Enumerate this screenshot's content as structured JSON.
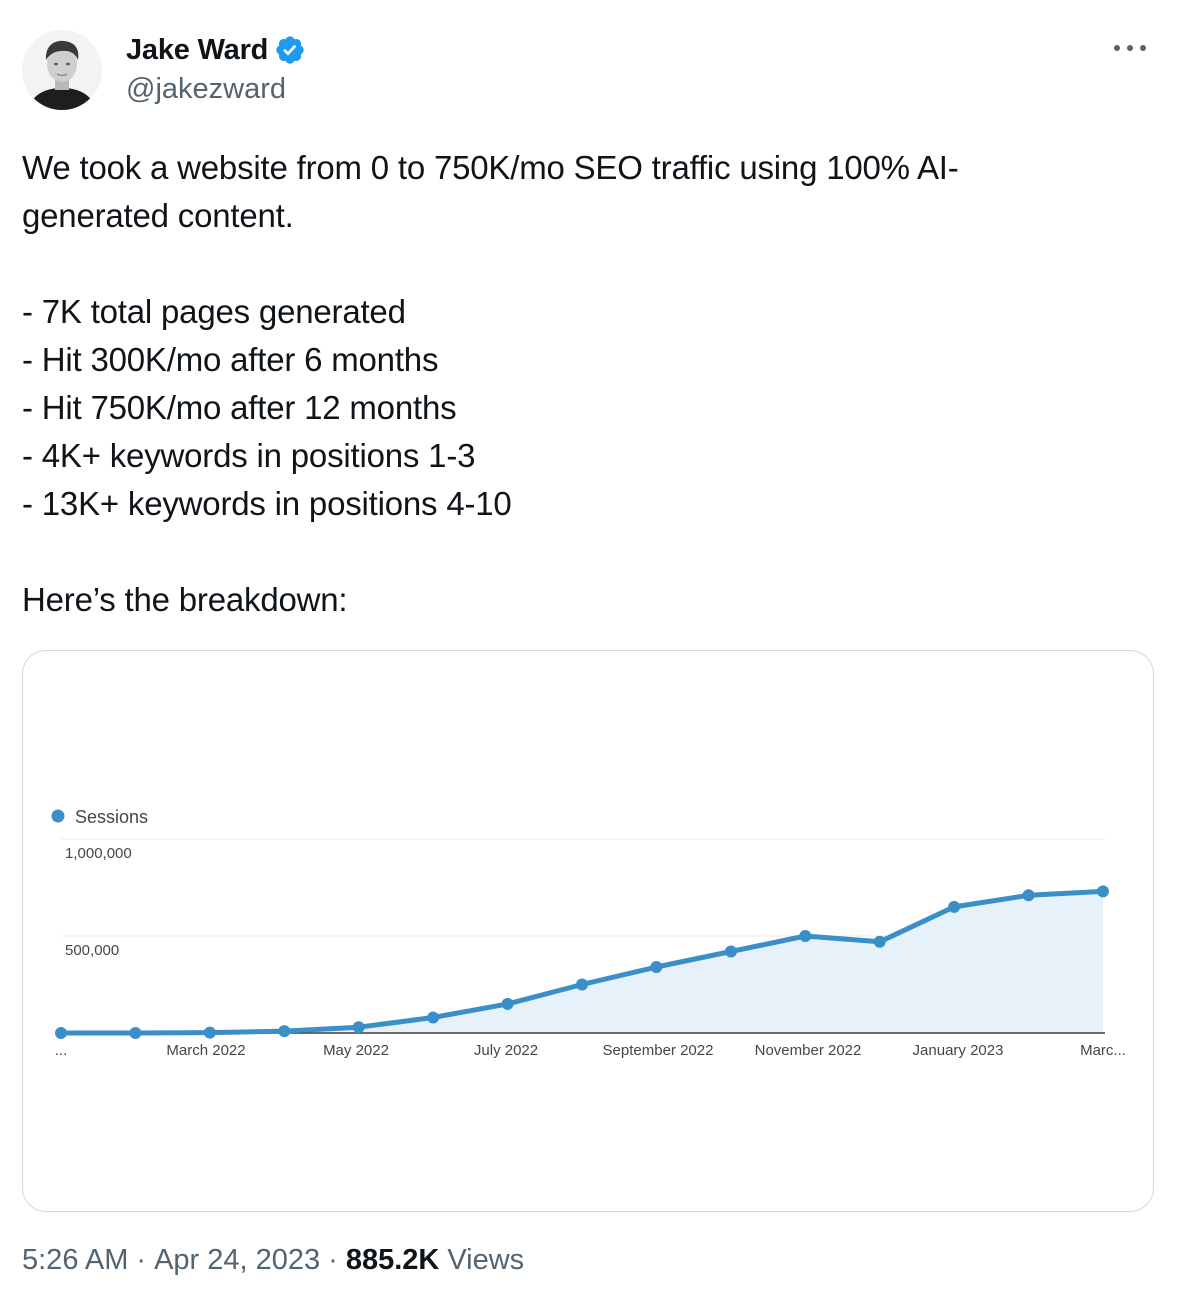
{
  "author": {
    "display_name": "Jake Ward",
    "handle": "@jakezward",
    "verified_icon": "verified-badge-icon",
    "badge_color": "#1d9bf0"
  },
  "tweet": {
    "lines": [
      "We took a website from 0 to 750K/mo SEO traffic using 100% AI-",
      "generated content.",
      "",
      "- 7K total pages generated",
      "- Hit 300K/mo after 6 months",
      "- Hit 750K/mo after 12 months",
      "- 4K+ keywords in positions 1-3",
      "- 13K+ keywords in positions 4-10",
      "",
      "Here’s the breakdown:"
    ]
  },
  "meta": {
    "time": "5:26 AM",
    "separator": "·",
    "date": "Apr 24, 2023",
    "views_count": "885.2K",
    "views_label": "Views"
  },
  "chart_data": {
    "type": "area",
    "legend": [
      "Sessions"
    ],
    "legend_placement": "top-left",
    "series": [
      {
        "name": "Sessions",
        "color": "#3a8fc9",
        "values": [
          0,
          0,
          2000,
          10000,
          30000,
          80000,
          150000,
          250000,
          340000,
          420000,
          500000,
          470000,
          650000,
          710000,
          730000
        ]
      }
    ],
    "x_ticks": [
      "...",
      "March 2022",
      "May 2022",
      "July 2022",
      "September 2022",
      "November 2022",
      "January 2023",
      "Marc..."
    ],
    "y_ticks": [
      "1,000,000",
      "500,000"
    ],
    "ylim": [
      0,
      1000000
    ],
    "grid": true
  }
}
